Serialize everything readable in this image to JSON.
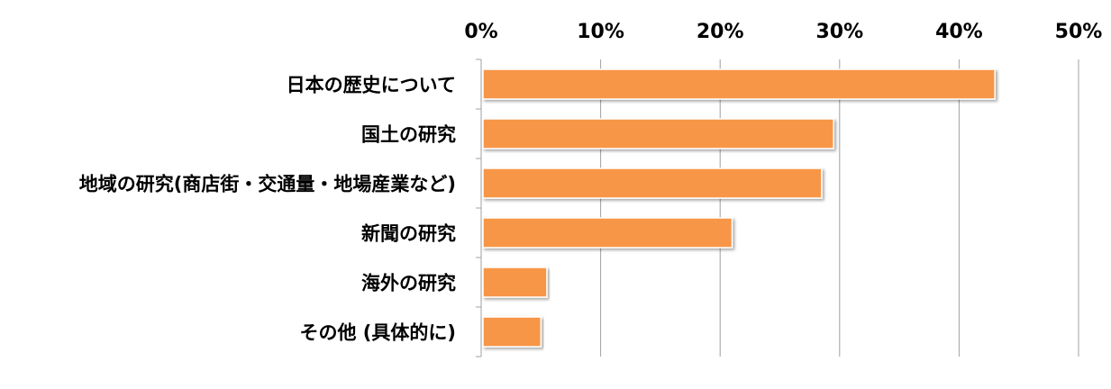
{
  "chart_data": {
    "type": "bar",
    "orientation": "horizontal",
    "categories": [
      "日本の歴史について",
      "国土の研究",
      "地域の研究(商店街・交通量・地場産業など)",
      "新聞の研究",
      "海外の研究",
      "その他 (具体的に)"
    ],
    "values": [
      43,
      29.5,
      28.5,
      21,
      5.5,
      5
    ],
    "unit": "%",
    "xlim": [
      0,
      50
    ],
    "ticks": [
      0,
      10,
      20,
      30,
      40,
      50
    ],
    "tick_labels": [
      "0%",
      "10%",
      "20%",
      "30%",
      "40%",
      "50%"
    ],
    "axis_position": "top",
    "grid": true,
    "legend": "none",
    "title": "",
    "xlabel": "",
    "ylabel": "",
    "bar_color": "#F79646",
    "bar_border_color": "#FFFFFF",
    "grid_color": "#A0A0A0"
  }
}
